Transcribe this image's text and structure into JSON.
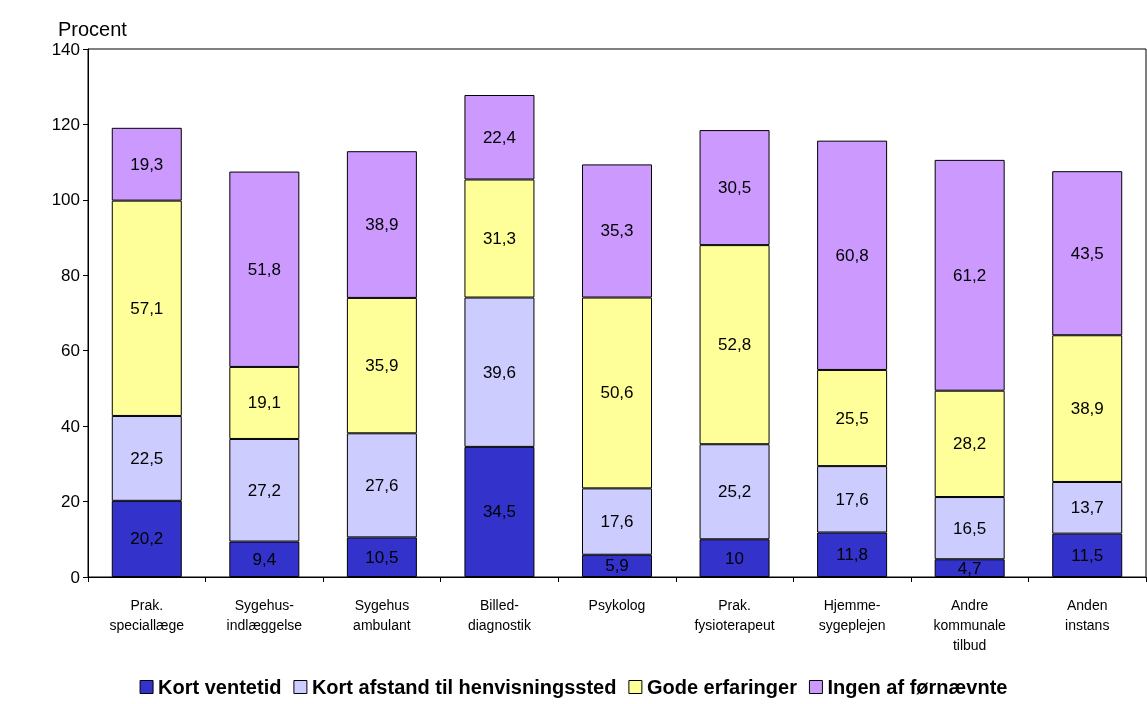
{
  "chart_data": {
    "type": "bar",
    "stacked": true,
    "ylabel": "Procent",
    "categories": [
      "Prak.\nspeciallæge",
      "Sygehus-\nindlæggelse",
      "Sygehus\nambulant",
      "Billed-\ndiagnostik",
      "Psykolog",
      "Prak.\nfysioterapeut",
      "Hjemme-\nsygeplejen",
      "Andre\nkommunale\ntilbud",
      "Anden\ninstans"
    ],
    "series": [
      {
        "name": "Kort ventetid",
        "color": "#3333cc",
        "values": [
          20.2,
          9.4,
          10.5,
          34.5,
          5.9,
          10,
          11.8,
          4.7,
          11.5
        ],
        "value_labels": [
          "20,2",
          "9,4",
          "10,5",
          "34,5",
          "5,9",
          "10",
          "11,8",
          "4,7",
          "11,5"
        ]
      },
      {
        "name": "Kort afstand til henvisningssted",
        "color": "#ccccff",
        "values": [
          22.5,
          27.2,
          27.6,
          39.6,
          17.6,
          25.2,
          17.6,
          16.5,
          13.7
        ],
        "value_labels": [
          "22,5",
          "27,2",
          "27,6",
          "39,6",
          "17,6",
          "25,2",
          "17,6",
          "16,5",
          "13,7"
        ]
      },
      {
        "name": "Gode erfaringer",
        "color": "#ffff99",
        "values": [
          57.1,
          19.1,
          35.9,
          31.3,
          50.6,
          52.8,
          25.5,
          28.2,
          38.9
        ],
        "value_labels": [
          "57,1",
          "19,1",
          "35,9",
          "31,3",
          "50,6",
          "52,8",
          "25,5",
          "28,2",
          "38,9"
        ]
      },
      {
        "name": "Ingen af førnævnte",
        "color": "#cc99ff",
        "values": [
          19.3,
          51.8,
          38.9,
          22.4,
          35.3,
          30.5,
          60.8,
          61.2,
          43.5
        ],
        "value_labels": [
          "19,3",
          "51,8",
          "38,9",
          "22,4",
          "35,3",
          "30,5",
          "60,8",
          "61,2",
          "43,5"
        ]
      }
    ],
    "ylim": [
      0,
      140
    ],
    "yticks": [
      0,
      20,
      40,
      60,
      80,
      100,
      120,
      140
    ],
    "grid": false,
    "legend": "bottom"
  }
}
